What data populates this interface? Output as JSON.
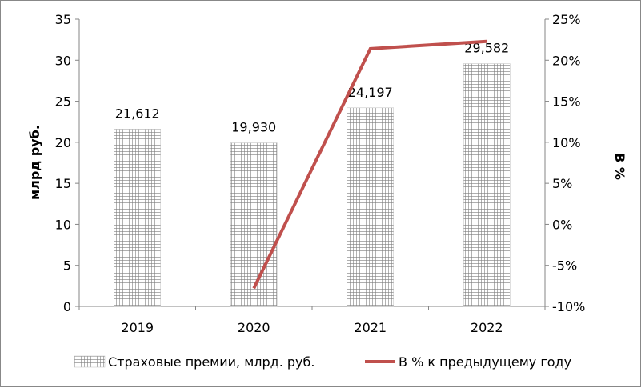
{
  "chart_data": {
    "type": "bar",
    "categories": [
      "2019",
      "2020",
      "2021",
      "2022"
    ],
    "series": [
      {
        "name": "Страховые премии, млрд. руб.",
        "type": "bar",
        "axis": "left",
        "values": [
          21.612,
          19.93,
          24.197,
          29.582
        ],
        "labels": [
          "21,612",
          "19,930",
          "24,197",
          "29,582"
        ],
        "color": "#808080"
      },
      {
        "name": "В % к предыдущему году",
        "type": "line",
        "axis": "right",
        "values": [
          null,
          -7.8,
          21.4,
          22.3
        ],
        "color": "#c0504d"
      }
    ],
    "ylabel": "млрд руб.",
    "y2label": "В %",
    "ylim": [
      0,
      35
    ],
    "yticks": [
      "0",
      "5",
      "10",
      "15",
      "20",
      "25",
      "30",
      "35"
    ],
    "y2lim": [
      -10,
      25
    ],
    "y2ticks": [
      "-10%",
      "-5%",
      "0%",
      "5%",
      "10%",
      "15%",
      "20%",
      "25%"
    ],
    "grid": false,
    "legend": "bottom"
  }
}
